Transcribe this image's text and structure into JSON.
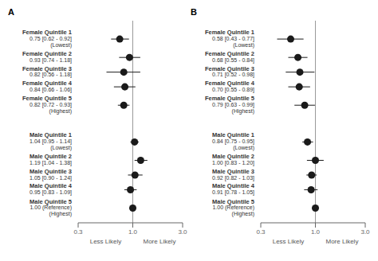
{
  "chart_data": [
    {
      "type": "forest",
      "title": "A",
      "log": "x",
      "xlim": [
        0.3,
        3.0
      ],
      "xticks": [
        0.3,
        {
          "value": 1.0,
          "label": "1.0"
        },
        {
          "value": 3.0,
          "label": "3.0"
        }
      ],
      "color": "#1a1a1a",
      "ref_line": 1.0,
      "annotations": [
        {
          "text": "Less Likely",
          "x": 0.55
        },
        {
          "text": "More Likely",
          "x": 1.8
        }
      ],
      "groups": [
        {
          "categories": [
            "Female Quintile 1",
            "Female Quintile 2",
            "Female Quintile 3",
            "Female Quintile 4",
            "Female Quintile 5"
          ],
          "sublabels": [
            "0.75 [0.62 - 0.92]",
            "0.93 [0.74 - 1.18]",
            "0.82 [0.56 - 1.18]",
            "0.84 [0.66 - 1.06]",
            "0.82 [0.72 - 0.93]"
          ],
          "sublabels2": [
            "(Lowest)",
            null,
            null,
            null,
            "(Highest)"
          ],
          "values": [
            0.75,
            0.93,
            0.82,
            0.84,
            0.82
          ],
          "ci_low": [
            0.62,
            0.74,
            0.56,
            0.66,
            0.72
          ],
          "ci_high": [
            0.92,
            1.18,
            1.18,
            1.06,
            0.93
          ]
        },
        {
          "categories": [
            "Male Quintile 1",
            "Male Quintile 2",
            "Male Quintile 3",
            "Male Quintile 4",
            "Male Quintile 5"
          ],
          "sublabels": [
            "1.04 [0.95 - 1.14]",
            "1.19 [1.04 - 1.38]",
            "1.05 [0.90 - 1.24]",
            "0.95 [0.83 - 1.09]",
            "1.00 (Reference)"
          ],
          "sublabels2": [
            "(Lowest)",
            null,
            null,
            null,
            "(Highest)"
          ],
          "values": [
            1.04,
            1.19,
            1.05,
            0.95,
            1.0
          ],
          "ci_low": [
            0.95,
            1.04,
            0.9,
            0.83,
            1.0
          ],
          "ci_high": [
            1.14,
            1.38,
            1.24,
            1.09,
            1.0
          ]
        }
      ]
    },
    {
      "type": "forest",
      "title": "B",
      "log": "x",
      "xlim": [
        0.3,
        3.0
      ],
      "xticks": [
        0.3,
        {
          "value": 1.0,
          "label": "1.0"
        },
        {
          "value": 3.0,
          "label": "3.0"
        }
      ],
      "color": "#1a1a1a",
      "ref_line": 1.0,
      "annotations": [
        {
          "text": "Less Likely",
          "x": 0.55
        },
        {
          "text": "More Likely",
          "x": 1.8
        }
      ],
      "groups": [
        {
          "categories": [
            "Female Quintile 1",
            "Female Quintile 2",
            "Female Quintile 3",
            "Female Quintile 4",
            "Female Quintile 5"
          ],
          "sublabels": [
            "0.58 [0.43 - 0.77]",
            "0.68 [0.55 - 0.84]",
            "0.71 [0.52 - 0.98]",
            "0.70 [0.55 - 0.89]",
            "0.79 [0.63 - 0.99]"
          ],
          "sublabels2": [
            "(Lowest)",
            null,
            null,
            null,
            "(Highest)"
          ],
          "values": [
            0.58,
            0.68,
            0.71,
            0.7,
            0.79
          ],
          "ci_low": [
            0.43,
            0.55,
            0.52,
            0.55,
            0.63
          ],
          "ci_high": [
            0.77,
            0.84,
            0.98,
            0.89,
            0.99
          ]
        },
        {
          "categories": [
            "Male Quintile 1",
            "Male Quintile 2",
            "Male Quintile 3",
            "Male Quintile 4",
            "Male Quintile 5"
          ],
          "sublabels": [
            "0.84 [0.75 - 0.95]",
            "1.00 [0.83 - 1.20]",
            "0.92 [0.82 - 1.03]",
            "0.91 [0.78 - 1.05]",
            "1.00 (Reference)"
          ],
          "sublabels2": [
            "(Lowest)",
            null,
            null,
            null,
            "(Highest)"
          ],
          "values": [
            0.84,
            1.0,
            0.92,
            0.91,
            1.0
          ],
          "ci_low": [
            0.75,
            0.83,
            0.82,
            0.78,
            1.0
          ],
          "ci_high": [
            0.95,
            1.2,
            1.03,
            1.05,
            1.0
          ]
        }
      ]
    }
  ]
}
